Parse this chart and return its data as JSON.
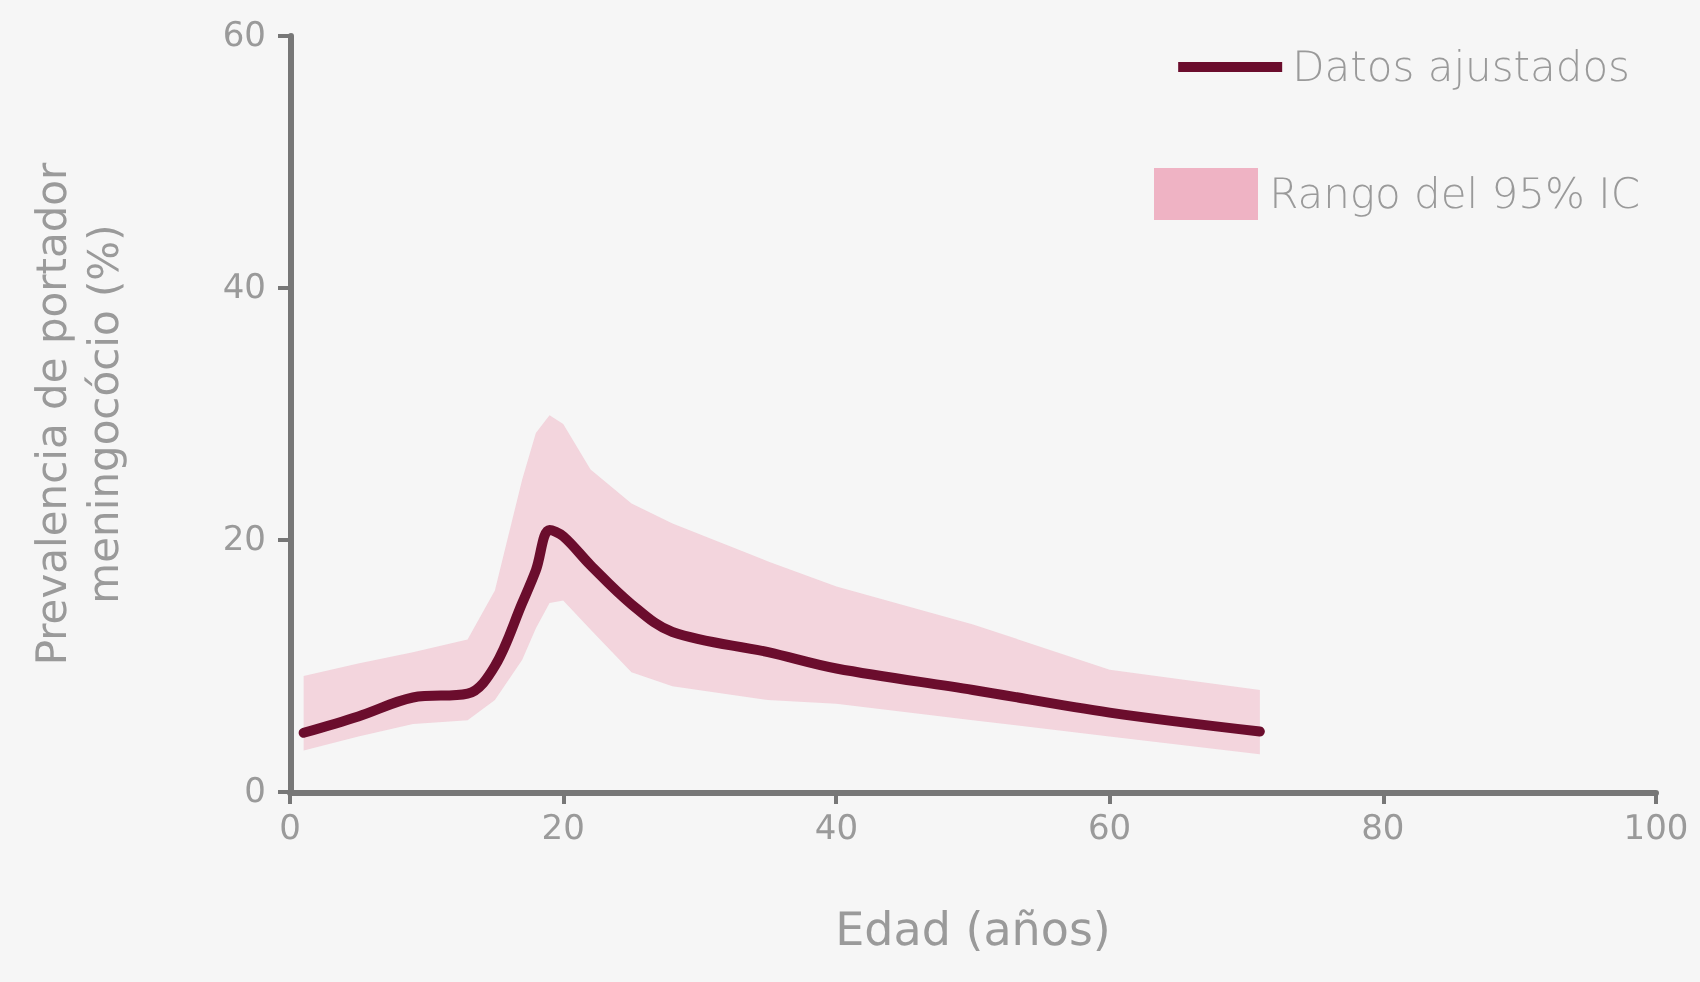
{
  "chart_data": {
    "type": "line",
    "xlabel": "Edad (años)",
    "ylabel": "Prevalencia de portador\nmeningocócio (%)",
    "xlim": [
      0,
      100
    ],
    "xticks": [
      0,
      20,
      40,
      60,
      80,
      100
    ],
    "ylim": [
      0,
      60
    ],
    "yticks": [
      0,
      20,
      40,
      60
    ],
    "grid": false,
    "legend": "top right",
    "marker": "none",
    "annotations": [
      "Rango del 95% IC"
    ],
    "x": [
      1,
      5,
      9,
      13,
      15,
      17,
      18,
      19,
      20,
      22,
      25,
      28,
      35,
      40,
      50,
      60,
      71
    ],
    "series": [
      {
        "name": "Datos ajustados",
        "color": "#6b0d2d",
        "values": [
          4.7,
          6,
          7.5,
          7.8,
          10,
          15,
          17.6,
          20.8,
          20.3,
          18,
          14.9,
          12.7,
          11.1,
          9.8,
          8.1,
          6.3,
          4.8
        ],
        "lower": [
          3.3,
          4.4,
          5.4,
          5.7,
          7.3,
          10.5,
          13,
          15,
          15.2,
          12.9,
          9.5,
          8.4,
          7.3,
          7,
          5.7,
          4.4,
          3
        ],
        "upper": [
          9.2,
          10.2,
          11.1,
          12.1,
          16,
          24.8,
          28.5,
          29.9,
          29.2,
          25.6,
          22.9,
          21.3,
          18.3,
          16.3,
          13.3,
          9.7,
          8.1
        ]
      }
    ]
  }
}
